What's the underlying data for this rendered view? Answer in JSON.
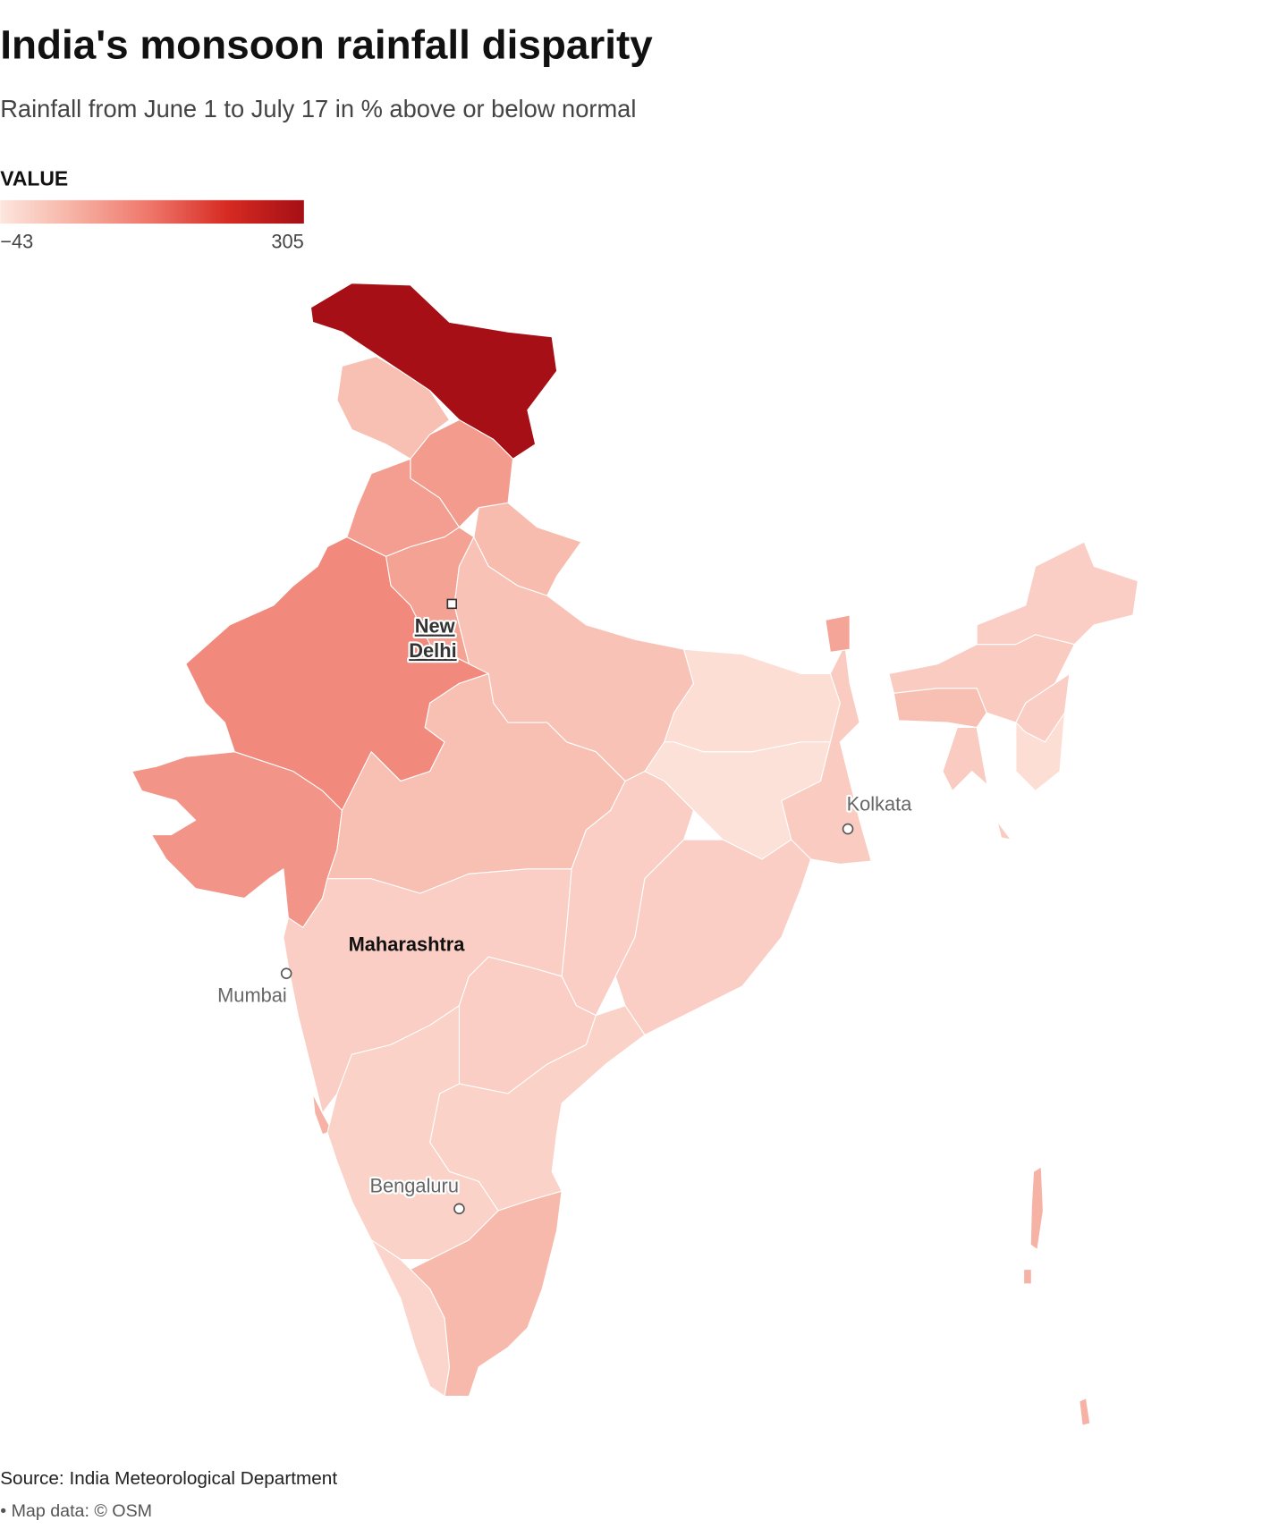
{
  "title": "India's monsoon rainfall disparity",
  "subtitle": "Rainfall from June 1 to July 17 in % above or below normal",
  "legend": {
    "title": "VALUE",
    "range": [
      {
        "value": -43,
        "label": "−43"
      },
      305
    ],
    "colors": [
      "#fde6de",
      "#f6b0a2",
      "#ee7468",
      "#d62a22",
      "#a50f15"
    ]
  },
  "region_values": [
    305,
    20,
    75,
    70,
    25,
    65,
    100,
    85,
    15,
    20,
    -30,
    -35,
    0,
    60,
    -5,
    -5,
    -5,
    -5,
    -10,
    40,
    -10,
    -15,
    30,
    -5,
    0,
    20,
    -5,
    -30,
    0,
    40,
    40,
    40
  ],
  "places": {
    "new_delhi": [
      "New",
      "Delhi"
    ],
    "kolkata": "Kolkata",
    "mumbai": "Mumbai",
    "bengaluru": "Bengaluru",
    "state": "Maharashtra"
  },
  "source": "Source: India Meteorological Department",
  "credit": "• Map data: © OSM"
}
